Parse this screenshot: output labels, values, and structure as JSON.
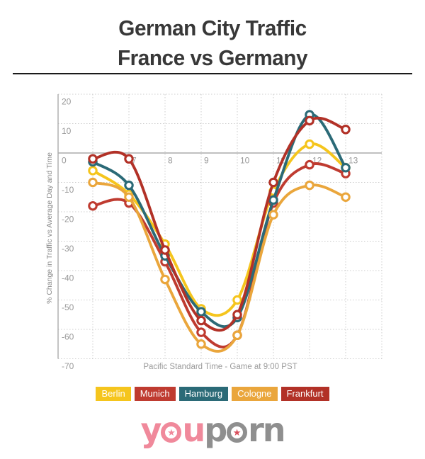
{
  "title": {
    "line1": "German City Traffic",
    "line2": "France vs Germany"
  },
  "chart_data": {
    "type": "line",
    "x": [
      6,
      7,
      8,
      9,
      10,
      11,
      12,
      13
    ],
    "x_ticks": [
      7,
      8,
      9,
      10,
      11,
      12,
      13
    ],
    "y_ticks": [
      20,
      10,
      0,
      -10,
      -20,
      -30,
      -40,
      -50,
      -60,
      -70
    ],
    "ylim": [
      -70,
      20
    ],
    "grid": "dotted",
    "legend_position": "bottom",
    "ylabel": "% Change in Traffic vs Average Day and Time",
    "caption": "Pacific Standard Time - Game at 9:00 PST",
    "series": [
      {
        "name": "Berlin",
        "color": "#F5C51D",
        "values": [
          -6,
          -14,
          -31,
          -53,
          -50,
          -13,
          3,
          -5
        ]
      },
      {
        "name": "Munich",
        "color": "#BF3B30",
        "values": [
          -18,
          -17,
          -37,
          -61,
          -62,
          -17,
          -4,
          -7
        ]
      },
      {
        "name": "Hamburg",
        "color": "#2B6A77",
        "values": [
          -3,
          -11,
          -35,
          -54,
          -56,
          -16,
          13,
          -5
        ]
      },
      {
        "name": "Cologne",
        "color": "#EAA63C",
        "values": [
          -10,
          -15,
          -43,
          -65,
          -62,
          -21,
          -11,
          -15
        ]
      },
      {
        "name": "Frankfurt",
        "color": "#B23127",
        "values": [
          -2,
          -2,
          -33,
          -57,
          -55,
          -10,
          11,
          8
        ]
      }
    ]
  },
  "logo": {
    "pink_pre": "y",
    "pink_post": "u",
    "gray_pre": "p",
    "gray_post": "rn",
    "star": "★",
    "pink": "#F0899B",
    "gray": "#8F8F8F",
    "star2": "#D94F5C"
  },
  "colors": {
    "grid": "#cccccc",
    "axis": "#ababab",
    "tick_text": "#999999"
  }
}
